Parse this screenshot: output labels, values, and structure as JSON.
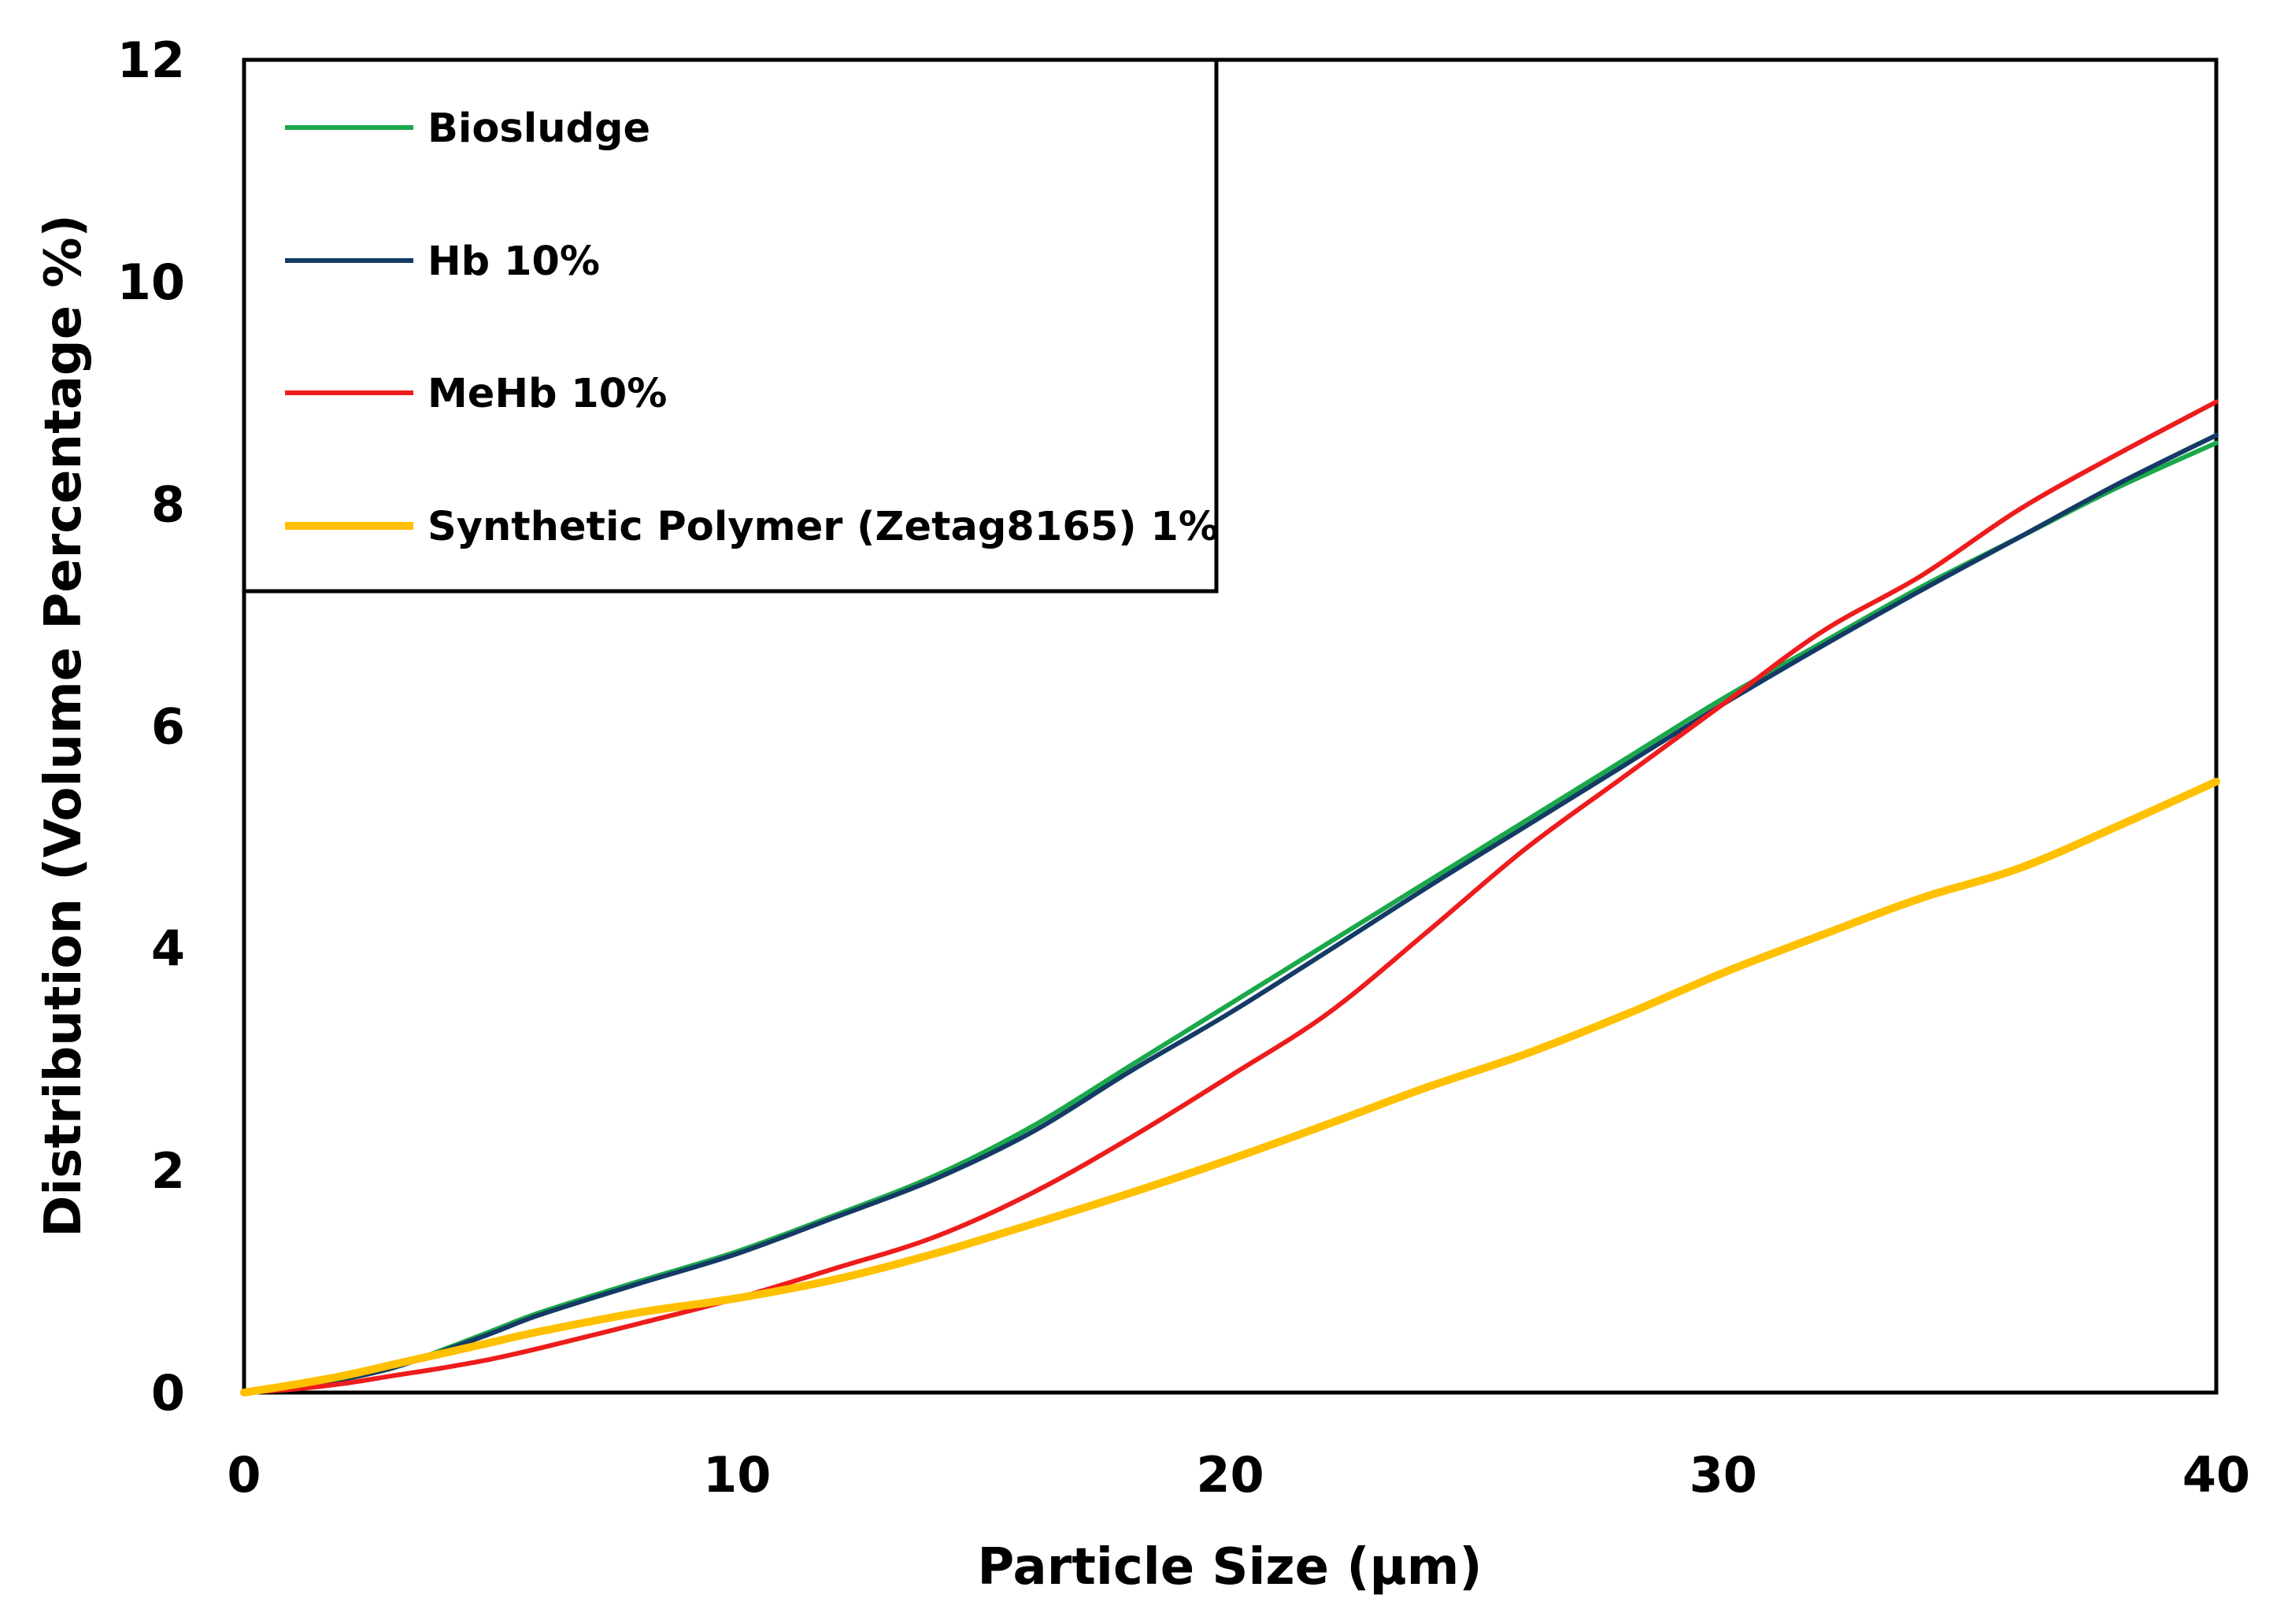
{
  "chart_data": {
    "type": "line",
    "title": "",
    "xlabel": "Particle Size (µm)",
    "ylabel": "Distribution (Volume Percentage %)",
    "xlim": [
      0,
      40
    ],
    "ylim": [
      0,
      12
    ],
    "xticks": [
      0,
      10,
      20,
      30,
      40
    ],
    "yticks": [
      0,
      2,
      4,
      6,
      8,
      10,
      12
    ],
    "grid": false,
    "legend_position": "top-left",
    "series": [
      {
        "name": "Biosludge",
        "color": "#1aa84a",
        "x": [
          0,
          1,
          2,
          3,
          4,
          5,
          6,
          8,
          10,
          12,
          14,
          16,
          18,
          20,
          22,
          24,
          26,
          28,
          30,
          32,
          34,
          36,
          38,
          40
        ],
        "y": [
          0,
          0.05,
          0.12,
          0.22,
          0.38,
          0.55,
          0.72,
          1.0,
          1.27,
          1.6,
          1.95,
          2.4,
          2.95,
          3.5,
          4.05,
          4.6,
          5.15,
          5.7,
          6.25,
          6.75,
          7.25,
          7.7,
          8.15,
          8.55
        ]
      },
      {
        "name": "Hb 10%",
        "color": "#143a66",
        "x": [
          0,
          1,
          2,
          3,
          4,
          5,
          6,
          8,
          10,
          12,
          14,
          16,
          18,
          20,
          22,
          24,
          26,
          28,
          30,
          32,
          34,
          36,
          38,
          40
        ],
        "y": [
          0,
          0.05,
          0.12,
          0.22,
          0.37,
          0.53,
          0.7,
          0.98,
          1.25,
          1.58,
          1.92,
          2.35,
          2.9,
          3.42,
          3.98,
          4.55,
          5.1,
          5.65,
          6.2,
          6.72,
          7.22,
          7.7,
          8.18,
          8.62
        ]
      },
      {
        "name": "MeHb 10%",
        "color": "#ee1c1c",
        "x": [
          0,
          1,
          2,
          3,
          4,
          5,
          6,
          8,
          10,
          12,
          14,
          16,
          18,
          20,
          22,
          24,
          26,
          28,
          30,
          32,
          34,
          36,
          38,
          40
        ],
        "y": [
          0,
          0.03,
          0.08,
          0.15,
          0.22,
          0.3,
          0.4,
          0.62,
          0.85,
          1.12,
          1.4,
          1.8,
          2.3,
          2.85,
          3.42,
          4.15,
          4.9,
          5.55,
          6.2,
          6.85,
          7.35,
          7.95,
          8.45,
          8.92
        ]
      },
      {
        "name": "Synthetic Polymer (Zetag8165) 1%",
        "color": "#ffc000",
        "x": [
          0,
          1,
          2,
          3,
          4,
          5,
          6,
          8,
          10,
          12,
          14,
          16,
          18,
          20,
          22,
          24,
          26,
          28,
          30,
          32,
          34,
          36,
          38,
          40
        ],
        "y": [
          0,
          0.07,
          0.15,
          0.25,
          0.35,
          0.45,
          0.55,
          0.72,
          0.85,
          1.02,
          1.25,
          1.52,
          1.8,
          2.1,
          2.42,
          2.75,
          3.05,
          3.4,
          3.78,
          4.12,
          4.45,
          4.72,
          5.1,
          5.5
        ]
      }
    ]
  }
}
